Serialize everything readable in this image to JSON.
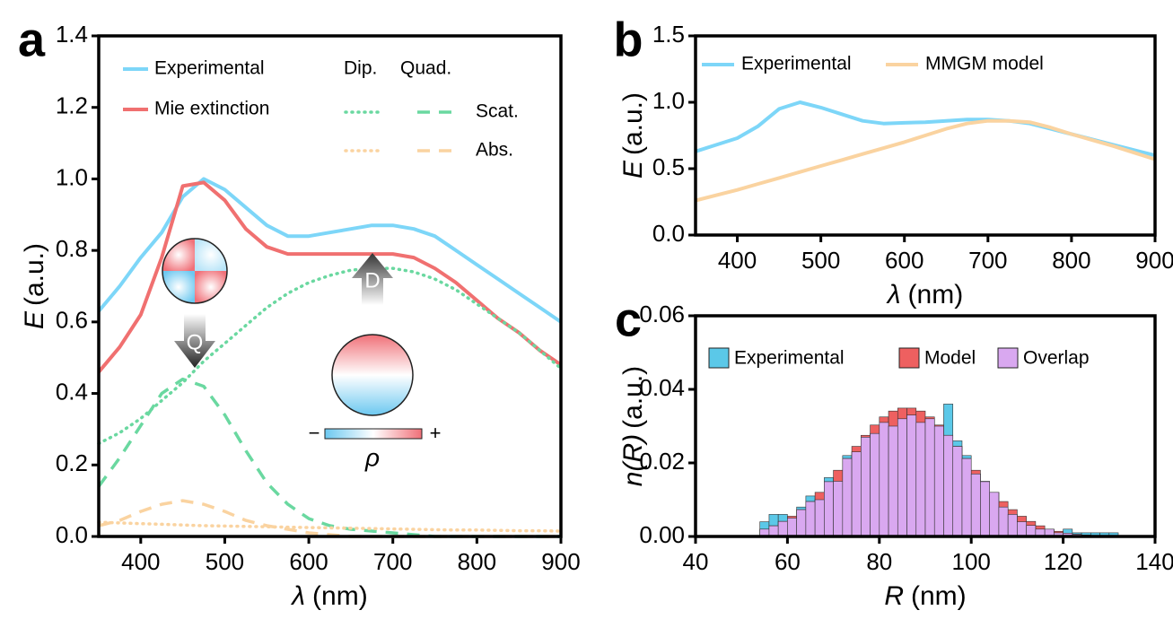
{
  "chart_data": [
    {
      "type": "line",
      "panel_label": "a",
      "x_label": {
        "symbol": "λ",
        "unit": "(nm)"
      },
      "y_label": {
        "symbol": "E",
        "unit": "(a.u.)"
      },
      "xlim": [
        350,
        900
      ],
      "xticks": [
        400,
        500,
        600,
        700,
        800,
        900
      ],
      "ylim": [
        0,
        1.4
      ],
      "yticks": [
        {
          "value": 0,
          "label": "0.0"
        },
        {
          "value": 0.2,
          "label": "0.2"
        },
        {
          "value": 0.4,
          "label": "0.4"
        },
        {
          "value": 0.6,
          "label": "0.6"
        },
        {
          "value": 0.8,
          "label": "0.8"
        },
        {
          "value": 1,
          "label": "1.0"
        },
        {
          "value": 1.2,
          "label": "1.2"
        },
        {
          "value": 1.4,
          "label": "1.4"
        }
      ],
      "x": [
        350,
        375,
        400,
        425,
        450,
        475,
        500,
        525,
        550,
        575,
        600,
        625,
        650,
        675,
        700,
        725,
        750,
        775,
        800,
        825,
        850,
        875,
        900
      ],
      "series": [
        {
          "name": "Experimental",
          "color": "#7dd6f8",
          "dash": "solid",
          "values": [
            0.63,
            0.7,
            0.78,
            0.85,
            0.95,
            1.0,
            0.97,
            0.92,
            0.87,
            0.84,
            0.84,
            0.85,
            0.86,
            0.87,
            0.87,
            0.86,
            0.84,
            0.8,
            0.76,
            0.72,
            0.68,
            0.64,
            0.6
          ]
        },
        {
          "name": "Mie extinction",
          "color": "#f07070",
          "dash": "solid",
          "values": [
            0.46,
            0.53,
            0.62,
            0.78,
            0.98,
            0.99,
            0.94,
            0.86,
            0.81,
            0.79,
            0.79,
            0.79,
            0.79,
            0.79,
            0.79,
            0.78,
            0.75,
            0.71,
            0.66,
            0.61,
            0.57,
            0.52,
            0.48
          ]
        },
        {
          "color": "#6ad8a0",
          "dash": "dotted",
          "values": [
            0.26,
            0.29,
            0.33,
            0.38,
            0.43,
            0.49,
            0.54,
            0.59,
            0.64,
            0.68,
            0.71,
            0.73,
            0.745,
            0.75,
            0.75,
            0.74,
            0.72,
            0.69,
            0.65,
            0.61,
            0.57,
            0.52,
            0.47
          ]
        },
        {
          "color": "#6ad8a0",
          "dash": "dashed",
          "values": [
            0.14,
            0.22,
            0.31,
            0.4,
            0.44,
            0.42,
            0.34,
            0.24,
            0.15,
            0.09,
            0.05,
            0.03,
            0.02,
            0.015,
            0.01,
            0.005,
            0,
            0,
            0,
            0,
            0,
            0,
            0
          ]
        },
        {
          "color": "#fad3a0",
          "dash": "dotted",
          "values": [
            0.04,
            0.038,
            0.036,
            0.034,
            0.032,
            0.03,
            0.029,
            0.028,
            0.027,
            0.026,
            0.025,
            0.024,
            0.023,
            0.022,
            0.021,
            0.02,
            0.019,
            0.018,
            0.018,
            0.017,
            0.016,
            0.016,
            0.015
          ]
        },
        {
          "color": "#fad3a0",
          "dash": "dashed",
          "values": [
            0.03,
            0.045,
            0.07,
            0.09,
            0.1,
            0.09,
            0.07,
            0.045,
            0.03,
            0.02,
            0.01,
            0.005,
            0,
            0,
            0,
            0,
            0,
            0,
            0,
            0,
            0,
            0,
            0
          ]
        }
      ],
      "legend_columns": [
        "Dip.",
        "Quad."
      ],
      "legend_rows": [
        "Scat.",
        "Abs."
      ],
      "annotations": [
        "Q",
        "D"
      ],
      "colorbar": {
        "label": "ρ",
        "min_label": "−",
        "max_label": "+"
      }
    },
    {
      "type": "line",
      "panel_label": "b",
      "x_label": {
        "symbol": "λ",
        "unit": "(nm)"
      },
      "y_label": {
        "symbol": "E",
        "unit": "(a.u.)"
      },
      "xlim": [
        350,
        900
      ],
      "xticks": [
        400,
        500,
        600,
        700,
        800,
        900
      ],
      "ylim": [
        0,
        1.5
      ],
      "yticks": [
        {
          "value": 0,
          "label": "0.0"
        },
        {
          "value": 0.5,
          "label": "0.5"
        },
        {
          "value": 1,
          "label": "1.0"
        },
        {
          "value": 1.5,
          "label": "1.5"
        }
      ],
      "x": [
        350,
        375,
        400,
        425,
        450,
        475,
        500,
        525,
        550,
        575,
        600,
        625,
        650,
        675,
        700,
        725,
        750,
        775,
        800,
        825,
        850,
        875,
        900
      ],
      "series": [
        {
          "name": "Experimental",
          "color": "#7dd6f8",
          "dash": "solid",
          "values": [
            0.63,
            0.68,
            0.73,
            0.82,
            0.95,
            1.0,
            0.96,
            0.91,
            0.86,
            0.84,
            0.845,
            0.85,
            0.86,
            0.87,
            0.87,
            0.86,
            0.84,
            0.8,
            0.76,
            0.72,
            0.68,
            0.64,
            0.6
          ]
        },
        {
          "name": "MMGM model",
          "color": "#fad3a0",
          "dash": "solid",
          "values": [
            0.26,
            0.3,
            0.34,
            0.385,
            0.43,
            0.475,
            0.52,
            0.565,
            0.61,
            0.655,
            0.7,
            0.75,
            0.8,
            0.84,
            0.86,
            0.86,
            0.85,
            0.81,
            0.76,
            0.715,
            0.67,
            0.62,
            0.57
          ]
        }
      ]
    },
    {
      "type": "histogram",
      "panel_label": "c",
      "x_label": {
        "symbol": "R",
        "unit": "(nm)"
      },
      "y_label": {
        "symbol": "n(R)",
        "unit": "(a.u.)"
      },
      "xlim": [
        40,
        140
      ],
      "xticks": [
        40,
        60,
        80,
        100,
        120,
        140
      ],
      "ylim": [
        0,
        0.06
      ],
      "yticks": [
        {
          "value": 0,
          "label": "0.00"
        },
        {
          "value": 0.02,
          "label": "0.02"
        },
        {
          "value": 0.04,
          "label": "0.04"
        },
        {
          "value": 0.06,
          "label": "0.06"
        }
      ],
      "bins": [
        54,
        56,
        58,
        60,
        62,
        64,
        66,
        68,
        70,
        72,
        74,
        76,
        78,
        80,
        82,
        84,
        86,
        88,
        90,
        92,
        94,
        96,
        98,
        100,
        102,
        104,
        106,
        108,
        110,
        112,
        114,
        116,
        118,
        120,
        122,
        124,
        126,
        128,
        130,
        132,
        134
      ],
      "series": [
        {
          "name": "Experimental",
          "color": "#5bc8e8",
          "values": [
            0.004,
            0.006,
            0.006,
            0.005,
            0.008,
            0.011,
            0.01,
            0.016,
            0.015,
            0.022,
            0.023,
            0.027,
            0.028,
            0.031,
            0.03,
            0.032,
            0.033,
            0.031,
            0.032,
            0.03,
            0.036,
            0.026,
            0.022,
            0.017,
            0.015,
            0.012,
            0.008,
            0.006,
            0.004,
            0.003,
            0.002,
            0.002,
            0.001,
            0.002,
            0.001,
            0.001,
            0.001,
            0.001,
            0.001,
            0
          ]
        },
        {
          "name": "Model",
          "color": "#ee6060",
          "values": [
            0.002,
            0.0029,
            0.0041,
            0.0055,
            0.0073,
            0.0095,
            0.012,
            0.0149,
            0.018,
            0.0212,
            0.0245,
            0.0275,
            0.0303,
            0.0325,
            0.0341,
            0.0349,
            0.0349,
            0.0341,
            0.0325,
            0.0303,
            0.0275,
            0.0245,
            0.0212,
            0.018,
            0.0149,
            0.012,
            0.0095,
            0.0073,
            0.0055,
            0.0041,
            0.0029,
            0.002,
            0.0014,
            0.0009,
            0.0006,
            0.0004,
            0.0002,
            0.0001,
            0.0001,
            0
          ]
        },
        {
          "name": "Overlap",
          "color": "#d9a8f0",
          "values": [
            0.002,
            0.0029,
            0.0041,
            0.005,
            0.0073,
            0.0095,
            0.01,
            0.0149,
            0.015,
            0.0212,
            0.023,
            0.027,
            0.028,
            0.031,
            0.03,
            0.032,
            0.033,
            0.031,
            0.032,
            0.03,
            0.0275,
            0.0245,
            0.0212,
            0.017,
            0.0149,
            0.012,
            0.008,
            0.006,
            0.004,
            0.003,
            0.002,
            0.002,
            0.001,
            0.0009,
            0.0006,
            0.0004,
            0.0002,
            0.0001,
            0.0001,
            0
          ]
        }
      ]
    }
  ]
}
